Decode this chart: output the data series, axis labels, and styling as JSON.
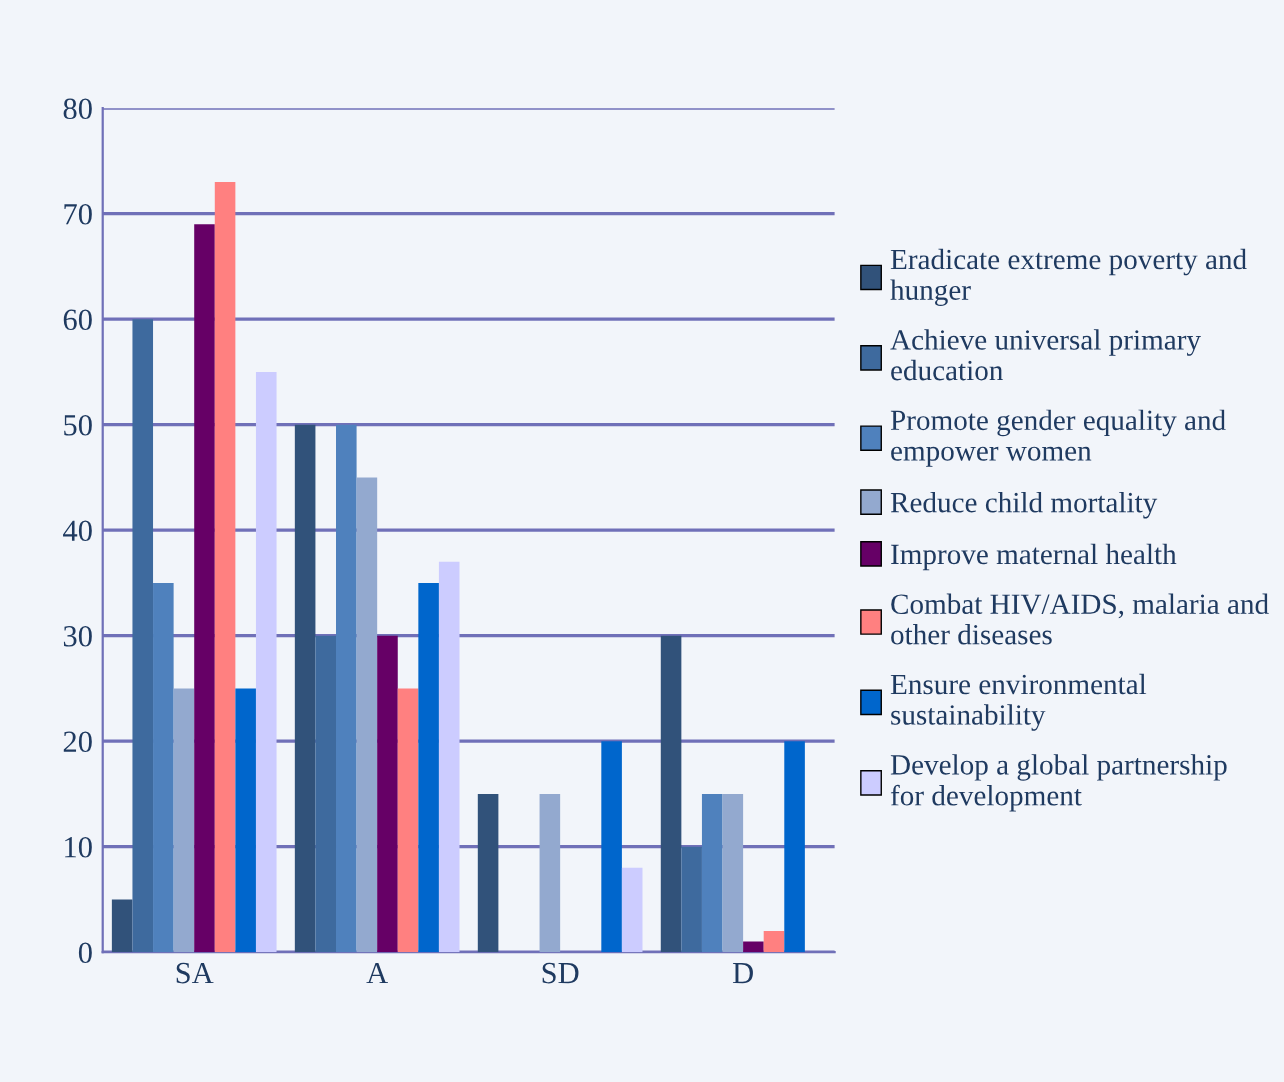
{
  "chart_data": {
    "type": "bar",
    "categories": [
      "SA",
      "A",
      "SD",
      "D"
    ],
    "series": [
      {
        "name": "Eradicate extreme poverty and hunger",
        "color": "#31527a",
        "values": [
          5,
          50,
          15,
          30
        ]
      },
      {
        "name": "Achieve universal primary education",
        "color": "#3e6a9e",
        "values": [
          60,
          30,
          0,
          10
        ]
      },
      {
        "name": "Promote gender equality and empower women",
        "color": "#4f81bd",
        "values": [
          35,
          50,
          0,
          15
        ]
      },
      {
        "name": "Reduce child mortality",
        "color": "#93a9cf",
        "values": [
          25,
          45,
          15,
          15
        ]
      },
      {
        "name": "Improve maternal health",
        "color": "#660066",
        "values": [
          69,
          30,
          0,
          1
        ]
      },
      {
        "name": "Combat HIV/AIDS, malaria and other diseases",
        "color": "#ff8080",
        "values": [
          73,
          25,
          0,
          2
        ]
      },
      {
        "name": "Ensure environmental sustainability",
        "color": "#0066cc",
        "values": [
          25,
          35,
          20,
          20
        ]
      },
      {
        "name": "Develop a global partnership for development",
        "color": "#ccccff",
        "values": [
          55,
          37,
          8,
          0
        ]
      }
    ],
    "ylim": [
      0,
      80
    ],
    "yticks": [
      0,
      10,
      20,
      30,
      40,
      50,
      60,
      70,
      80
    ],
    "grid": "y",
    "legend": "right"
  }
}
